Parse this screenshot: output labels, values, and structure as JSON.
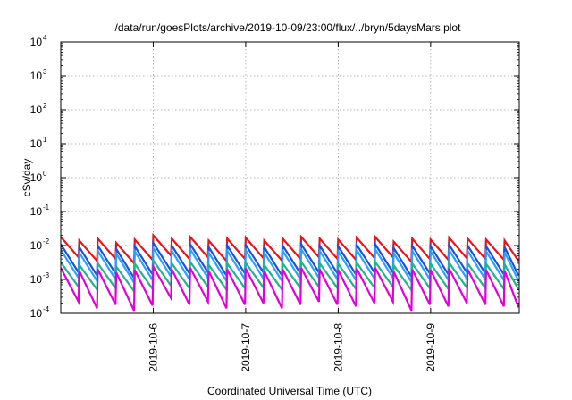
{
  "chart_data": {
    "type": "line",
    "title": "/data/run/goesPlots/archive/2019-10-09/23:00/flux/../bryn/5daysMars.plot",
    "xlabel": "Coordinated Universal Time (UTC)",
    "ylabel": "cSv/day",
    "yscale": "log",
    "ylim": [
      0.0001,
      10000
    ],
    "y_ticks": [
      {
        "base": "10",
        "exp": "-4",
        "value": 0.0001
      },
      {
        "base": "10",
        "exp": "-3",
        "value": 0.001
      },
      {
        "base": "10",
        "exp": "-2",
        "value": 0.01
      },
      {
        "base": "10",
        "exp": "-1",
        "value": 0.1
      },
      {
        "base": "10",
        "exp": "0",
        "value": 1
      },
      {
        "base": "10",
        "exp": "1",
        "value": 10
      },
      {
        "base": "10",
        "exp": "2",
        "value": 100
      },
      {
        "base": "10",
        "exp": "3",
        "value": 1000
      },
      {
        "base": "10",
        "exp": "4",
        "value": 10000
      }
    ],
    "xlim": [
      "2019-10-05 00:00",
      "2019-10-09 23:00"
    ],
    "x_ticks": [
      "2019-10-6",
      "2019-10-7",
      "2019-10-8",
      "2019-10-9"
    ],
    "grid": true,
    "sawtooth_starts": [
      "2019-10-05 00:00",
      "2019-10-05 04:48",
      "2019-10-05 09:36",
      "2019-10-05 14:24",
      "2019-10-05 19:12",
      "2019-10-06 00:00",
      "2019-10-06 04:48",
      "2019-10-06 09:36",
      "2019-10-06 14:24",
      "2019-10-06 19:12",
      "2019-10-07 00:00",
      "2019-10-07 04:48",
      "2019-10-07 09:36",
      "2019-10-07 14:24",
      "2019-10-07 19:12",
      "2019-10-08 00:00",
      "2019-10-08 04:48",
      "2019-10-08 09:36",
      "2019-10-08 14:24",
      "2019-10-08 19:12",
      "2019-10-09 00:00",
      "2019-10-09 04:48",
      "2019-10-09 09:36",
      "2019-10-09 14:24",
      "2019-10-09 19:12"
    ],
    "series": [
      {
        "color": "#e8141c",
        "peaks": [
          0.018,
          0.014,
          0.016,
          0.012,
          0.015,
          0.02,
          0.016,
          0.018,
          0.014,
          0.016,
          0.017,
          0.014,
          0.016,
          0.018,
          0.016,
          0.015,
          0.017,
          0.018,
          0.013,
          0.016,
          0.015,
          0.017,
          0.016,
          0.015,
          0.014
        ],
        "troughs": [
          0.0045,
          0.0035,
          0.004,
          0.003,
          0.0038,
          0.005,
          0.004,
          0.0045,
          0.0035,
          0.004,
          0.0042,
          0.0036,
          0.004,
          0.0045,
          0.004,
          0.0038,
          0.0043,
          0.0045,
          0.0033,
          0.004,
          0.0038,
          0.0042,
          0.004,
          0.0038,
          0.0035
        ]
      },
      {
        "color": "#1f4fd6",
        "peaks": [
          0.011,
          0.009,
          0.01,
          0.008,
          0.0095,
          0.012,
          0.01,
          0.011,
          0.009,
          0.01,
          0.0105,
          0.009,
          0.01,
          0.011,
          0.01,
          0.0095,
          0.0105,
          0.011,
          0.0085,
          0.01,
          0.0095,
          0.0105,
          0.01,
          0.0095,
          0.009
        ],
        "troughs": [
          0.0016,
          0.0013,
          0.0015,
          0.0011,
          0.0014,
          0.0018,
          0.0015,
          0.0016,
          0.0013,
          0.0015,
          0.0016,
          0.0013,
          0.0015,
          0.0016,
          0.0015,
          0.0014,
          0.0016,
          0.0016,
          0.0012,
          0.0015,
          0.0014,
          0.0016,
          0.0015,
          0.0014,
          0.0013
        ]
      },
      {
        "color": "#2aa0ff",
        "peaks": [
          0.0075,
          0.0062,
          0.007,
          0.0058,
          0.0068,
          0.0085,
          0.007,
          0.0078,
          0.0062,
          0.007,
          0.0073,
          0.0062,
          0.007,
          0.0078,
          0.007,
          0.0068,
          0.0074,
          0.0078,
          0.006,
          0.007,
          0.0068,
          0.0074,
          0.007,
          0.0068,
          0.0064
        ],
        "troughs": [
          0.0011,
          0.0009,
          0.001,
          0.0008,
          0.00095,
          0.0012,
          0.001,
          0.0011,
          0.0009,
          0.001,
          0.00105,
          0.0009,
          0.001,
          0.0011,
          0.001,
          0.00095,
          0.00105,
          0.0011,
          0.00085,
          0.001,
          0.00095,
          0.00105,
          0.001,
          0.00095,
          0.0009
        ]
      },
      {
        "color": "#21b38a",
        "peaks": [
          0.0032,
          0.0027,
          0.003,
          0.0024,
          0.0029,
          0.0036,
          0.003,
          0.0033,
          0.0027,
          0.003,
          0.0031,
          0.0027,
          0.003,
          0.0033,
          0.003,
          0.0029,
          0.0031,
          0.0033,
          0.0026,
          0.003,
          0.0029,
          0.0031,
          0.003,
          0.0029,
          0.0028
        ],
        "troughs": [
          0.0006,
          0.0005,
          0.00055,
          0.00045,
          0.00052,
          0.00065,
          0.00055,
          0.0006,
          0.0005,
          0.00055,
          0.00057,
          0.0005,
          0.00055,
          0.0006,
          0.00055,
          0.00052,
          0.00057,
          0.0006,
          0.00048,
          0.00055,
          0.00052,
          0.00057,
          0.00055,
          0.00052,
          0.0005
        ]
      },
      {
        "color": "#e000d8",
        "peaks": [
          0.0022,
          0.0018,
          0.002,
          0.0016,
          0.0019,
          0.0024,
          0.002,
          0.0022,
          0.0018,
          0.002,
          0.0021,
          0.0018,
          0.002,
          0.0022,
          0.002,
          0.0019,
          0.0021,
          0.0022,
          0.0017,
          0.002,
          0.0019,
          0.0021,
          0.002,
          0.0019,
          0.0018
        ],
        "troughs": [
          0.00022,
          0.00014,
          0.00018,
          0.00012,
          0.00017,
          0.00028,
          0.00018,
          0.00022,
          0.00014,
          0.00018,
          0.0002,
          0.00014,
          0.00018,
          0.00022,
          0.00018,
          0.00016,
          0.0002,
          0.00022,
          0.00012,
          0.00018,
          0.00016,
          0.0002,
          0.00018,
          0.00016,
          0.00015
        ]
      }
    ]
  }
}
